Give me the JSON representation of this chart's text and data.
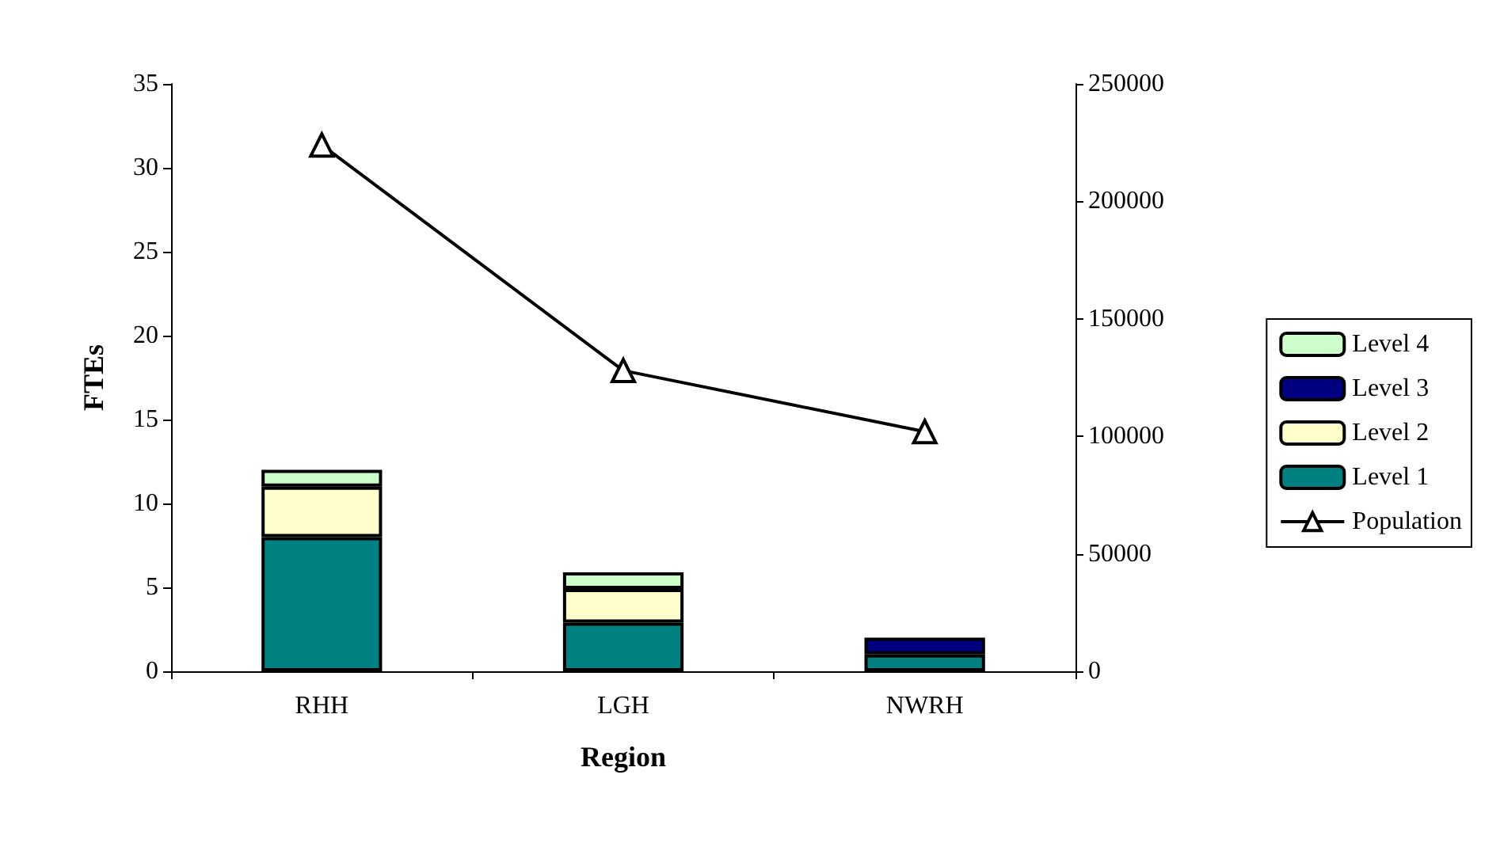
{
  "chart_data": {
    "type": "bar",
    "stacked": true,
    "xlabel": "Region",
    "ylabel": "FTEs",
    "categories": [
      "RHH",
      "LGH",
      "NWRH"
    ],
    "series": [
      {
        "name": "Level 1",
        "color": "#008080",
        "values": [
          8,
          2.9,
          1
        ]
      },
      {
        "name": "Level 2",
        "color": "#ffffcc",
        "values": [
          3,
          2,
          0
        ]
      },
      {
        "name": "Level 3",
        "color": "#000080",
        "values": [
          0,
          0,
          1
        ]
      },
      {
        "name": "Level 4",
        "color": "#ccffcc",
        "values": [
          1,
          1,
          0
        ]
      },
      {
        "name": "Population",
        "type": "line",
        "axis": "y2",
        "color": "#000000",
        "marker": "triangle",
        "values": [
          224000,
          128000,
          102000
        ]
      }
    ],
    "ylim": [
      0,
      35
    ],
    "yticks": [
      0,
      5,
      10,
      15,
      20,
      25,
      30,
      35
    ],
    "y2lim": [
      0,
      250000
    ],
    "y2ticks": [
      0,
      50000,
      100000,
      150000,
      200000,
      250000
    ],
    "legend": "right",
    "grid": false
  }
}
